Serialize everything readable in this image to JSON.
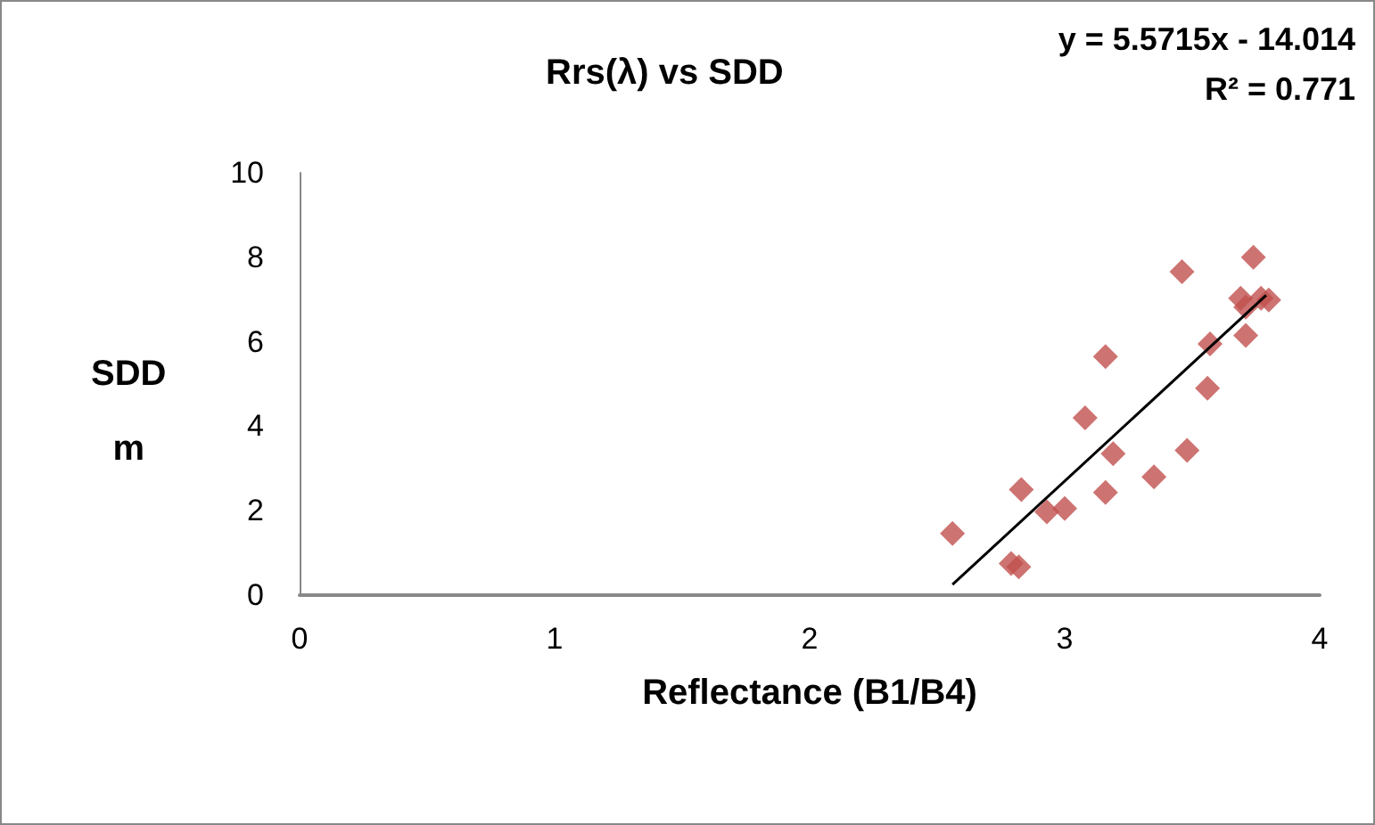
{
  "chart_data": {
    "type": "scatter",
    "title": "Rrs(λ) vs SDD",
    "xlabel": "Reflectance (B1/B4)",
    "ylabel": "SDD\nm",
    "annotations": [
      "y = 5.5715x - 14.014",
      "R² = 0.771"
    ],
    "xlim": [
      0,
      4
    ],
    "xticks": [
      0,
      1,
      2,
      3,
      4
    ],
    "ylim": [
      0,
      10
    ],
    "yticks": [
      0,
      2,
      4,
      6,
      8,
      10
    ],
    "grid": false,
    "marker": "diamond",
    "series": [
      {
        "color": "#c0504d",
        "x": [
          2.56,
          2.79,
          2.82,
          2.83,
          2.93,
          3.0,
          3.16,
          3.08,
          3.16,
          3.19,
          3.35,
          3.48,
          3.56,
          3.57,
          3.46,
          3.74,
          3.69,
          3.71,
          3.71,
          3.8,
          3.77
        ],
        "values": [
          1.46,
          0.75,
          0.67,
          2.5,
          1.97,
          2.05,
          2.43,
          4.2,
          5.65,
          3.35,
          2.8,
          3.43,
          4.9,
          5.95,
          7.66,
          8.0,
          7.03,
          6.82,
          6.15,
          6.99,
          7.03
        ]
      },
      {
        "type": "line",
        "color": "#000000",
        "marker": "none",
        "x": [
          2.56,
          3.79
        ],
        "values": [
          0.25,
          7.1
        ]
      }
    ]
  }
}
